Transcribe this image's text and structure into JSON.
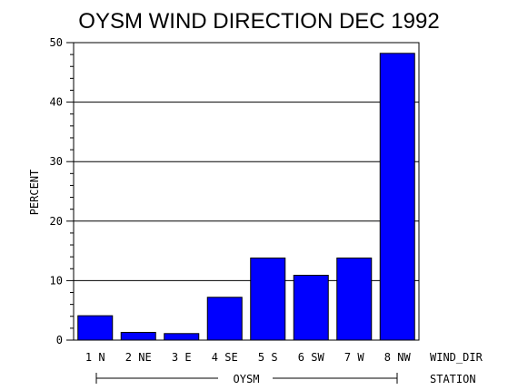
{
  "chart_data": {
    "type": "bar",
    "title": "OYSM WIND DIRECTION DEC 1992",
    "ylabel": "PERCENT",
    "xlabel": "WIND_DIR",
    "group_label": "STATION",
    "group_name": "OYSM",
    "categories": [
      "1 N",
      "2 NE",
      "3 E",
      "4 SE",
      "5 S",
      "6 SW",
      "7 W",
      "8 NW"
    ],
    "values": [
      4.1,
      1.3,
      1.1,
      7.2,
      13.8,
      10.9,
      13.8,
      48.2
    ],
    "ylim": [
      0,
      50
    ],
    "yticks": [
      "0",
      "10",
      "20",
      "30",
      "40",
      "50"
    ],
    "grid": true,
    "bar_color": "#0000ff",
    "legend": "none"
  }
}
